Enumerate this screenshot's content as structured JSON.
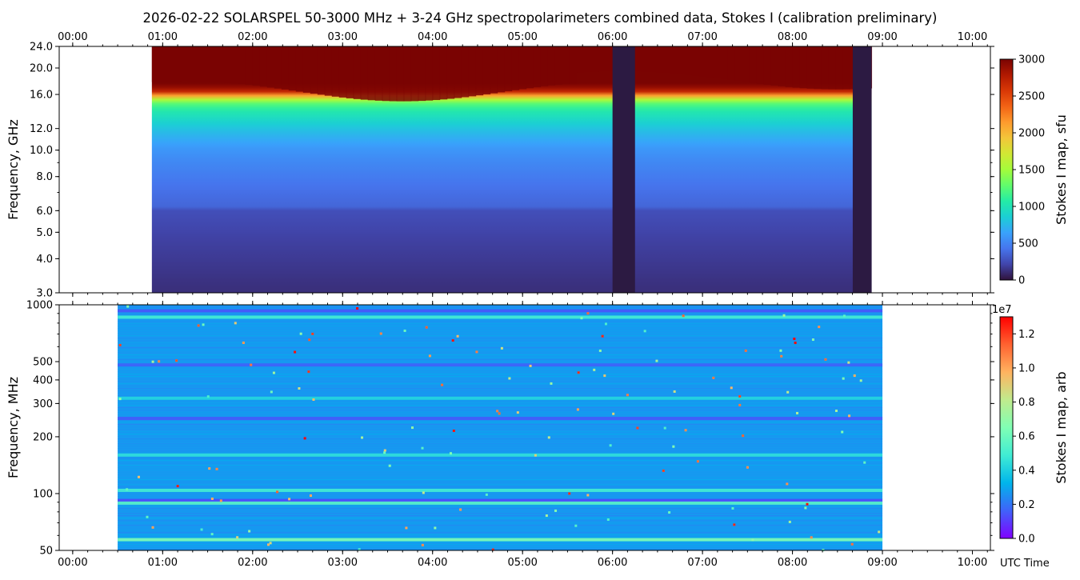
{
  "figure": {
    "title": "2026-02-22  SOLARSPEL  50-3000 MHz  +  3-24 GHz  spectropolarimeters combined data,  Stokes I  (calibration preliminary)",
    "xlabel_bottom": "UTC Time"
  },
  "colors": {
    "turbo": [
      "#30123b",
      "#4145ab",
      "#4675ed",
      "#39a2fc",
      "#1bcfd4",
      "#24eca6",
      "#61fc6c",
      "#a4fc3b",
      "#d1e834",
      "#f3c63a",
      "#fe9b2d",
      "#f36315",
      "#d93806",
      "#b11901",
      "#7a0402"
    ],
    "rainbow": [
      "#8000ff",
      "#4062fa",
      "#00b5eb",
      "#40ecd4",
      "#80ffb4",
      "#c0eb8d",
      "#ffb360",
      "#ff6230",
      "#ff0000"
    ],
    "no_data_column": "#2c1a42"
  },
  "chart_data": [
    {
      "type": "heatmap",
      "name": "Stokes I map, 3-24 GHz",
      "ylabel": "Frequency, GHz",
      "colorbar_label": "Stokes I map, sfu",
      "colormap": "turbo",
      "x_axis": "UTC time (hours)",
      "xlim": [
        -0.15,
        10.2
      ],
      "ylim": [
        3.0,
        24.0
      ],
      "y_scale": "log",
      "x_ticks": [
        "00:00",
        "01:00",
        "02:00",
        "03:00",
        "04:00",
        "05:00",
        "06:00",
        "07:00",
        "08:00",
        "09:00",
        "10:00"
      ],
      "y_ticks": [
        "3.0",
        "4.0",
        "5.0",
        "6.0",
        "8.0",
        "10.0",
        "12.0",
        "16.0",
        "20.0",
        "24.0"
      ],
      "colorbar_ticks": [
        "0",
        "500",
        "1000",
        "1500",
        "2000",
        "2500",
        "3000"
      ],
      "vmin": 0,
      "vmax": 3000,
      "data_range_hours": [
        0.88,
        8.88
      ],
      "gaps_hours": [
        [
          6.0,
          6.25
        ],
        [
          8.67,
          8.88
        ]
      ],
      "flux_profile": {
        "freq_ghz": [
          3.0,
          4.0,
          5.0,
          6.0,
          6.2,
          8.0,
          10.0,
          12.0,
          14.0,
          15.0,
          15.5,
          16.0,
          16.5,
          17.5,
          20.0,
          24.0
        ],
        "sfu": [
          120,
          170,
          210,
          260,
          360,
          460,
          580,
          800,
          1050,
          1300,
          1700,
          2300,
          2800,
          3000,
          3000,
          3000
        ]
      }
    },
    {
      "type": "heatmap",
      "name": "Stokes I map, 50-1000 MHz",
      "ylabel": "Frequency, MHz",
      "colorbar_label": "Stokes I map, arb",
      "colorbar_exponent": "1e7",
      "colormap": "rainbow",
      "x_axis": "UTC time (hours)",
      "xlim": [
        -0.15,
        10.2
      ],
      "ylim": [
        50,
        1000
      ],
      "y_scale": "log",
      "x_ticks": [
        "00:00",
        "01:00",
        "02:00",
        "03:00",
        "04:00",
        "05:00",
        "06:00",
        "07:00",
        "08:00",
        "09:00",
        "10:00"
      ],
      "y_ticks": [
        "50",
        "100",
        "200",
        "300",
        "400",
        "500",
        "1000"
      ],
      "colorbar_ticks": [
        "0.0",
        "0.2",
        "0.4",
        "0.6",
        "0.8",
        "1.0",
        "1.2"
      ],
      "vmin": 0.0,
      "vmax": 1.3,
      "data_range_hours": [
        0.5,
        9.0
      ],
      "background_level": 0.27,
      "bright_bands": [
        {
          "freq_mhz": 57,
          "level": 0.65
        },
        {
          "freq_mhz": 89,
          "level": 0.55
        },
        {
          "freq_mhz": 104,
          "level": 0.5
        },
        {
          "freq_mhz": 160,
          "level": 0.45
        },
        {
          "freq_mhz": 320,
          "level": 0.42
        },
        {
          "freq_mhz": 860,
          "level": 0.5
        }
      ],
      "dark_bands": [
        {
          "freq_mhz": 92,
          "level": 0.12
        },
        {
          "freq_mhz": 250,
          "level": 0.15
        },
        {
          "freq_mhz": 480,
          "level": 0.16
        },
        {
          "freq_mhz": 930,
          "level": 0.14
        }
      ]
    }
  ]
}
